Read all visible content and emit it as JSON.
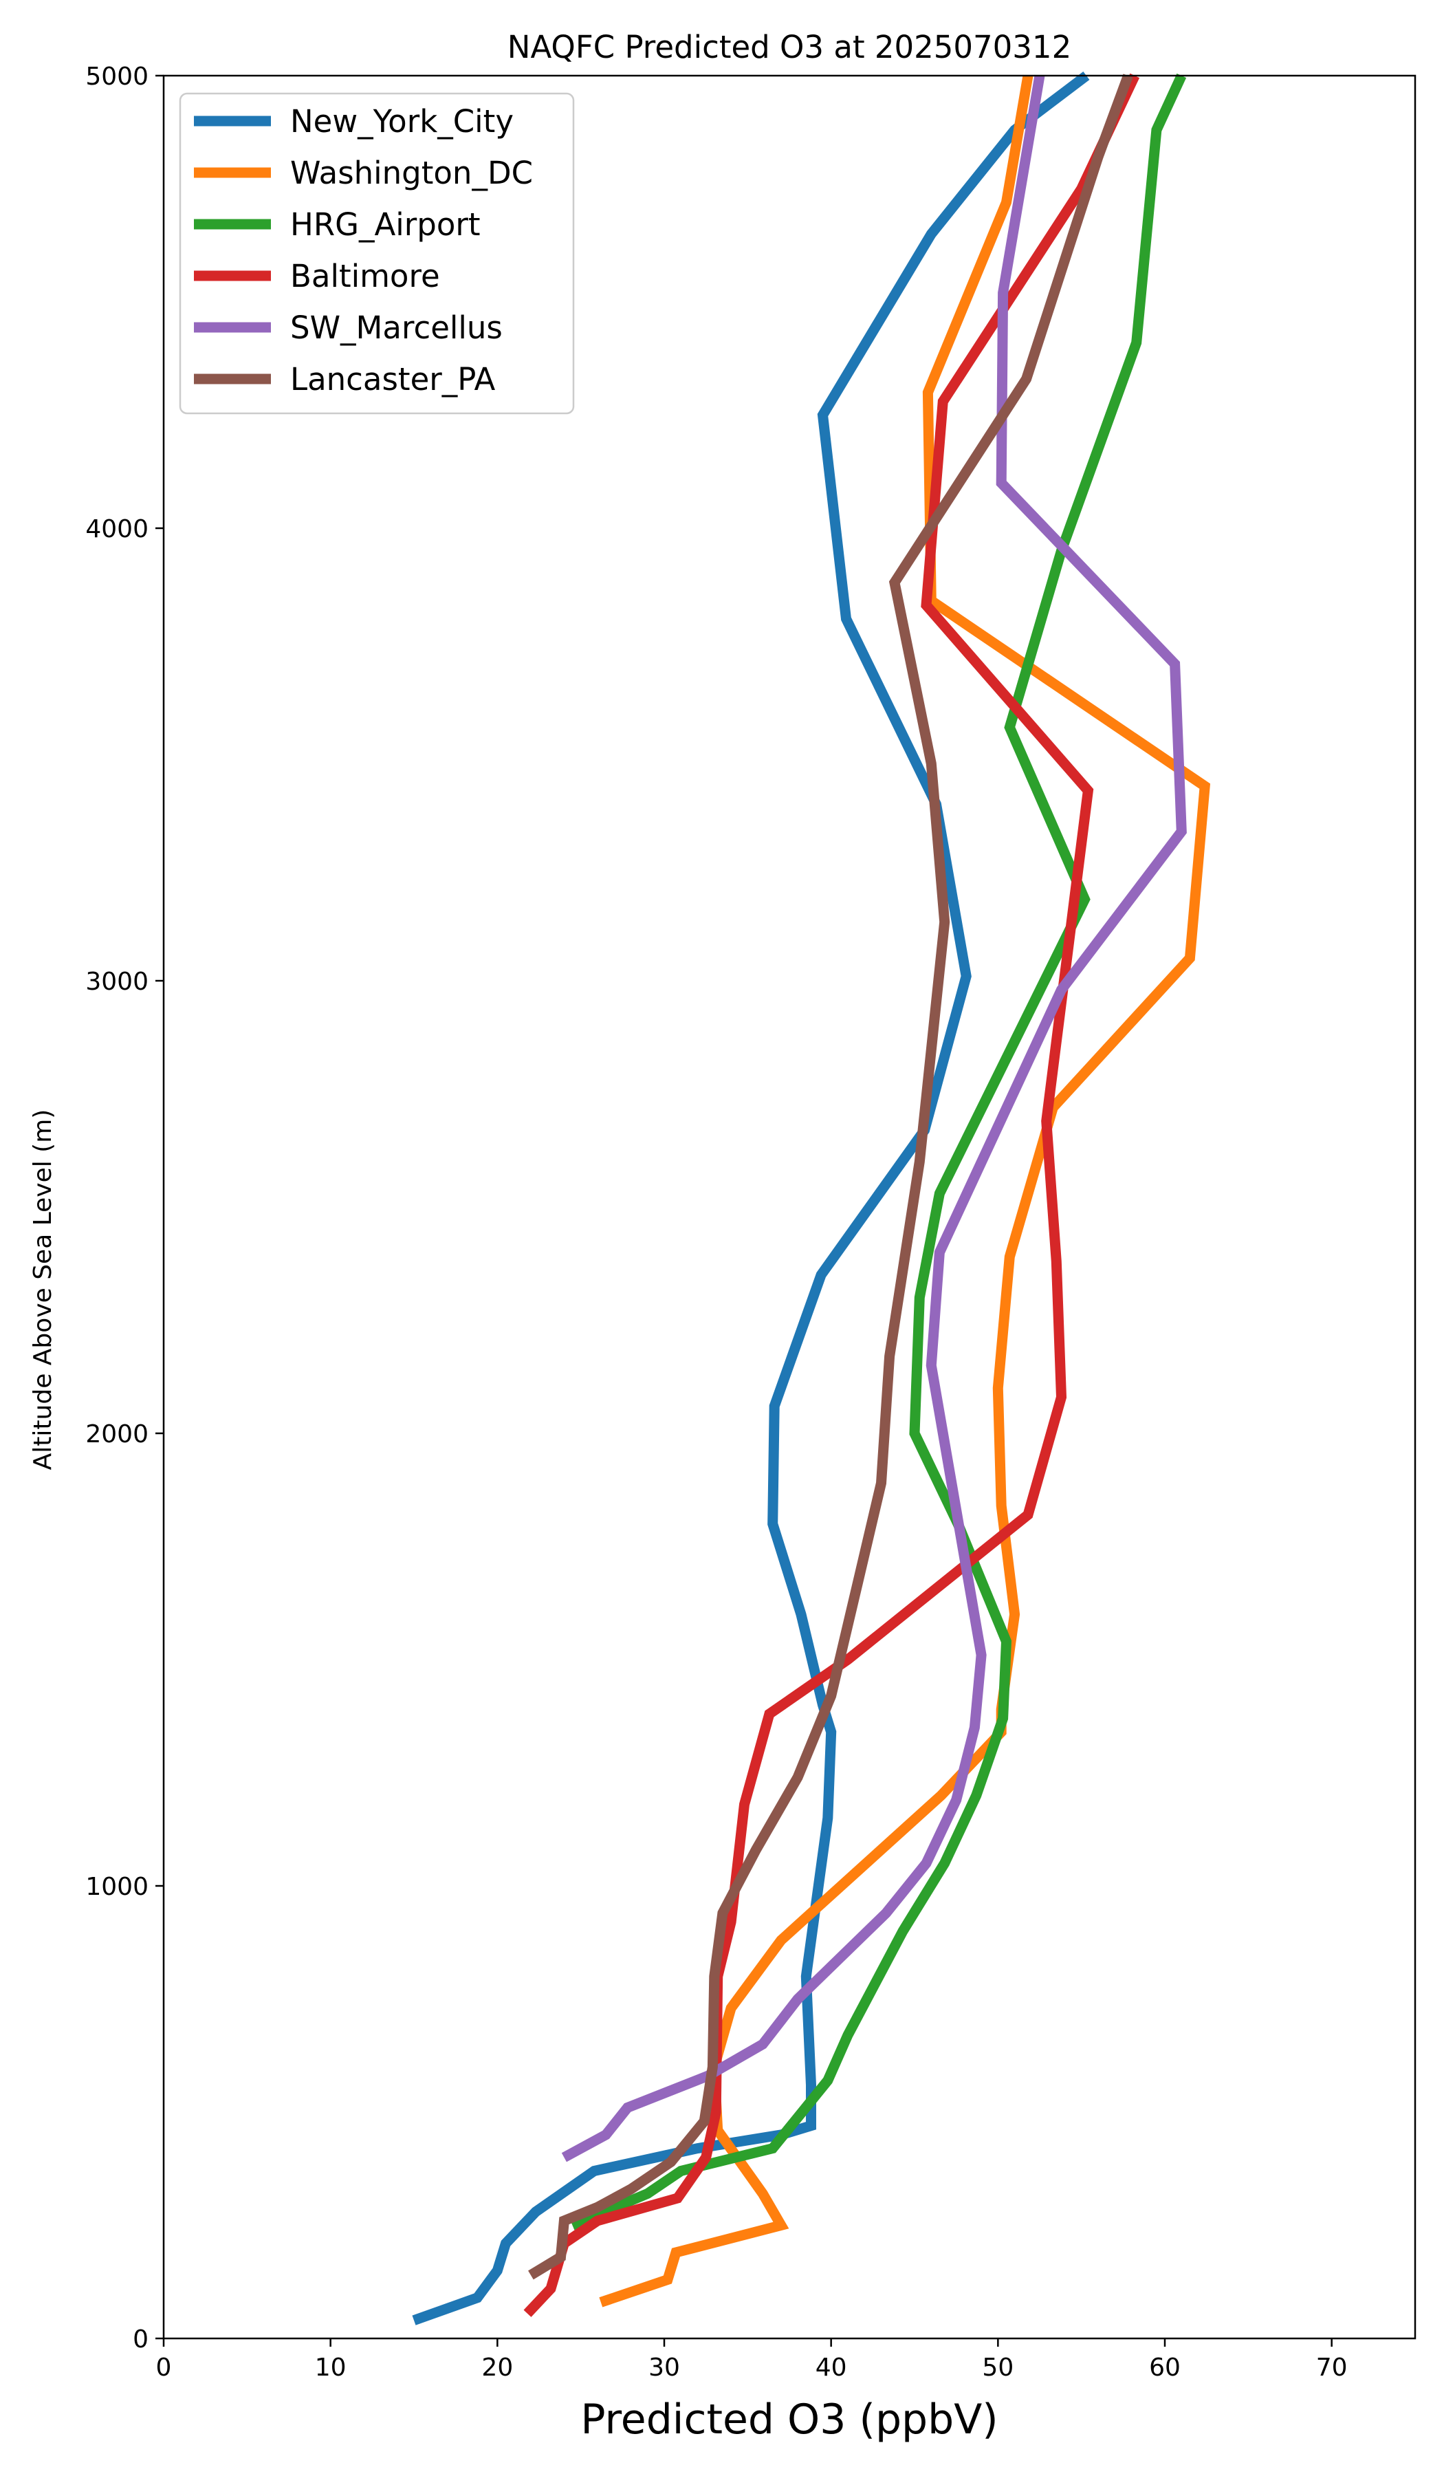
{
  "chart_data": {
    "type": "line",
    "title": "NAQFC Predicted O3 at 2025070312",
    "xlabel": "Predicted O3 (ppbV)",
    "ylabel": "Altitude Above Sea Level (m)",
    "xlim": [
      0,
      75
    ],
    "ylim": [
      0,
      5000
    ],
    "xticks": [
      0,
      10,
      20,
      30,
      40,
      50,
      60,
      70
    ],
    "yticks": [
      0,
      1000,
      2000,
      3000,
      4000,
      5000
    ],
    "grid": false,
    "legend_position": "upper-left",
    "series": [
      {
        "name": "New_York_City",
        "color": "#1f77b4",
        "points": [
          [
            15.0,
            40
          ],
          [
            18.8,
            90
          ],
          [
            20.0,
            150
          ],
          [
            20.5,
            210
          ],
          [
            22.3,
            280
          ],
          [
            25.8,
            370
          ],
          [
            32.0,
            420
          ],
          [
            37.0,
            450
          ],
          [
            38.8,
            470
          ],
          [
            38.8,
            560
          ],
          [
            38.5,
            800
          ],
          [
            39.8,
            1150
          ],
          [
            40.0,
            1340
          ],
          [
            39.5,
            1400
          ],
          [
            38.2,
            1600
          ],
          [
            36.5,
            1800
          ],
          [
            36.6,
            2060
          ],
          [
            39.4,
            2350
          ],
          [
            45.6,
            2670
          ],
          [
            48.1,
            3010
          ],
          [
            46.3,
            3390
          ],
          [
            40.9,
            3800
          ],
          [
            39.5,
            4250
          ],
          [
            46.0,
            4650
          ],
          [
            51.0,
            4880
          ],
          [
            55.3,
            5000
          ]
        ]
      },
      {
        "name": "Washington_DC",
        "color": "#ff7f0e",
        "points": [
          [
            26.2,
            80
          ],
          [
            30.2,
            130
          ],
          [
            30.7,
            190
          ],
          [
            37.0,
            250
          ],
          [
            35.9,
            320
          ],
          [
            33.2,
            460
          ],
          [
            33.0,
            600
          ],
          [
            34.0,
            730
          ],
          [
            37.0,
            880
          ],
          [
            46.6,
            1200
          ],
          [
            50.2,
            1340
          ],
          [
            50.2,
            1390
          ],
          [
            51.0,
            1600
          ],
          [
            50.2,
            1840
          ],
          [
            50.0,
            2100
          ],
          [
            50.7,
            2390
          ],
          [
            53.3,
            2720
          ],
          [
            61.5,
            3050
          ],
          [
            62.4,
            3430
          ],
          [
            46.0,
            3840
          ],
          [
            45.8,
            4300
          ],
          [
            50.5,
            4720
          ],
          [
            51.8,
            5000
          ]
        ]
      },
      {
        "name": "HRG_Airport",
        "color": "#2ca02c",
        "points": [
          [
            24.5,
            250
          ],
          [
            29.0,
            320
          ],
          [
            31.0,
            370
          ],
          [
            36.5,
            420
          ],
          [
            39.8,
            570
          ],
          [
            41.0,
            670
          ],
          [
            44.3,
            900
          ],
          [
            46.8,
            1050
          ],
          [
            48.7,
            1200
          ],
          [
            50.3,
            1370
          ],
          [
            50.5,
            1540
          ],
          [
            47.6,
            1800
          ],
          [
            45.0,
            2000
          ],
          [
            45.3,
            2300
          ],
          [
            46.5,
            2530
          ],
          [
            55.2,
            3180
          ],
          [
            50.7,
            3560
          ],
          [
            53.8,
            3950
          ],
          [
            58.3,
            4410
          ],
          [
            59.5,
            4880
          ],
          [
            61.0,
            5000
          ]
        ]
      },
      {
        "name": "Baltimore",
        "color": "#d62728",
        "points": [
          [
            21.8,
            55
          ],
          [
            23.2,
            110
          ],
          [
            24.0,
            210
          ],
          [
            26.0,
            260
          ],
          [
            30.8,
            310
          ],
          [
            32.5,
            400
          ],
          [
            33.1,
            500
          ],
          [
            33.2,
            800
          ],
          [
            34.0,
            920
          ],
          [
            34.8,
            1180
          ],
          [
            36.3,
            1380
          ],
          [
            41.0,
            1500
          ],
          [
            51.8,
            1820
          ],
          [
            53.8,
            2080
          ],
          [
            53.5,
            2380
          ],
          [
            52.9,
            2690
          ],
          [
            55.4,
            3420
          ],
          [
            45.7,
            3830
          ],
          [
            46.7,
            4280
          ],
          [
            55.0,
            4750
          ],
          [
            58.2,
            5000
          ]
        ]
      },
      {
        "name": "SW_Marcellus",
        "color": "#9467bd",
        "points": [
          [
            24.0,
            400
          ],
          [
            26.5,
            450
          ],
          [
            27.8,
            510
          ],
          [
            32.6,
            580
          ],
          [
            35.9,
            650
          ],
          [
            38.0,
            750
          ],
          [
            43.3,
            940
          ],
          [
            45.7,
            1050
          ],
          [
            47.5,
            1190
          ],
          [
            48.6,
            1350
          ],
          [
            49.0,
            1510
          ],
          [
            46.0,
            2150
          ],
          [
            46.5,
            2400
          ],
          [
            53.8,
            2980
          ],
          [
            61.0,
            3330
          ],
          [
            60.6,
            3700
          ],
          [
            50.2,
            4100
          ],
          [
            50.3,
            4520
          ],
          [
            52.5,
            5000
          ]
        ]
      },
      {
        "name": "Lancaster_PA",
        "color": "#8c564b",
        "points": [
          [
            22.0,
            140
          ],
          [
            23.8,
            180
          ],
          [
            24.0,
            260
          ],
          [
            26.0,
            290
          ],
          [
            28.0,
            330
          ],
          [
            30.4,
            390
          ],
          [
            32.4,
            480
          ],
          [
            32.9,
            600
          ],
          [
            33.0,
            800
          ],
          [
            33.5,
            940
          ],
          [
            35.5,
            1080
          ],
          [
            38.0,
            1240
          ],
          [
            40.0,
            1420
          ],
          [
            41.6,
            1670
          ],
          [
            43.0,
            1890
          ],
          [
            43.5,
            2170
          ],
          [
            45.3,
            2600
          ],
          [
            46.8,
            3130
          ],
          [
            46.0,
            3480
          ],
          [
            43.8,
            3880
          ],
          [
            51.7,
            4330
          ],
          [
            56.0,
            4820
          ],
          [
            57.8,
            5000
          ]
        ]
      }
    ]
  }
}
